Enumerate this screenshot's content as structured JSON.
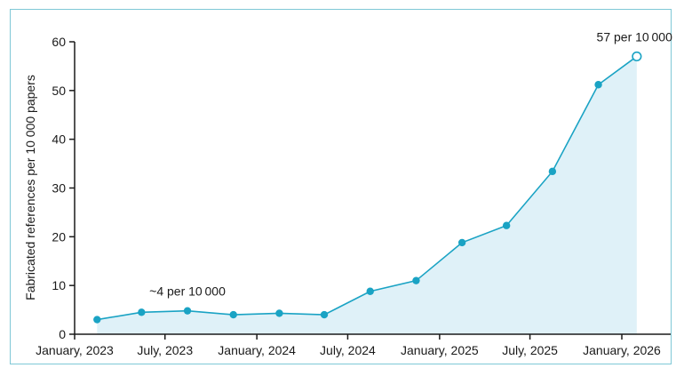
{
  "chart_data": {
    "type": "area",
    "title": "",
    "xlabel": "",
    "ylabel": "Fabricated references per 10 000 papers",
    "ylim": [
      0,
      60
    ],
    "yticks": [
      0,
      10,
      20,
      30,
      40,
      50,
      60
    ],
    "xlim": [
      "2023-01-01",
      "2026-01-01"
    ],
    "xticks": [
      {
        "date": "2023-01-01",
        "label": "January, 2023"
      },
      {
        "date": "2023-07-01",
        "label": "July, 2023"
      },
      {
        "date": "2024-01-01",
        "label": "January, 2024"
      },
      {
        "date": "2024-07-01",
        "label": "July, 2024"
      },
      {
        "date": "2025-01-01",
        "label": "January, 2025"
      },
      {
        "date": "2025-07-01",
        "label": "July, 2025"
      },
      {
        "date": "2026-01-01",
        "label": "January, 2026"
      }
    ],
    "series": [
      {
        "points": [
          {
            "x": "2023-02-15",
            "y": 3.0
          },
          {
            "x": "2023-05-15",
            "y": 4.5
          },
          {
            "x": "2023-08-15",
            "y": 4.8
          },
          {
            "x": "2023-11-15",
            "y": 4.0
          },
          {
            "x": "2024-02-15",
            "y": 4.3
          },
          {
            "x": "2024-05-15",
            "y": 4.0
          },
          {
            "x": "2024-08-15",
            "y": 8.8
          },
          {
            "x": "2024-11-15",
            "y": 11.0
          },
          {
            "x": "2025-02-15",
            "y": 18.8
          },
          {
            "x": "2025-05-15",
            "y": 22.3
          },
          {
            "x": "2025-08-15",
            "y": 33.4
          },
          {
            "x": "2025-11-15",
            "y": 51.2
          },
          {
            "x": "2026-01-31",
            "y": 57.0,
            "open": true
          }
        ]
      }
    ],
    "annotations": [
      {
        "text": "~4 per 10 000",
        "x": "2023-08-15",
        "y": 4.8
      },
      {
        "text": "57 per 10 000",
        "x": "2026-01-31",
        "y": 57.0
      }
    ],
    "colors": {
      "line": "#1aa3c4",
      "marker": "#1aa3c4",
      "fill": "#dff1f8",
      "border": "#7fc8d6",
      "axis": "#1a1a1a"
    },
    "grid": false,
    "legend": "none"
  }
}
